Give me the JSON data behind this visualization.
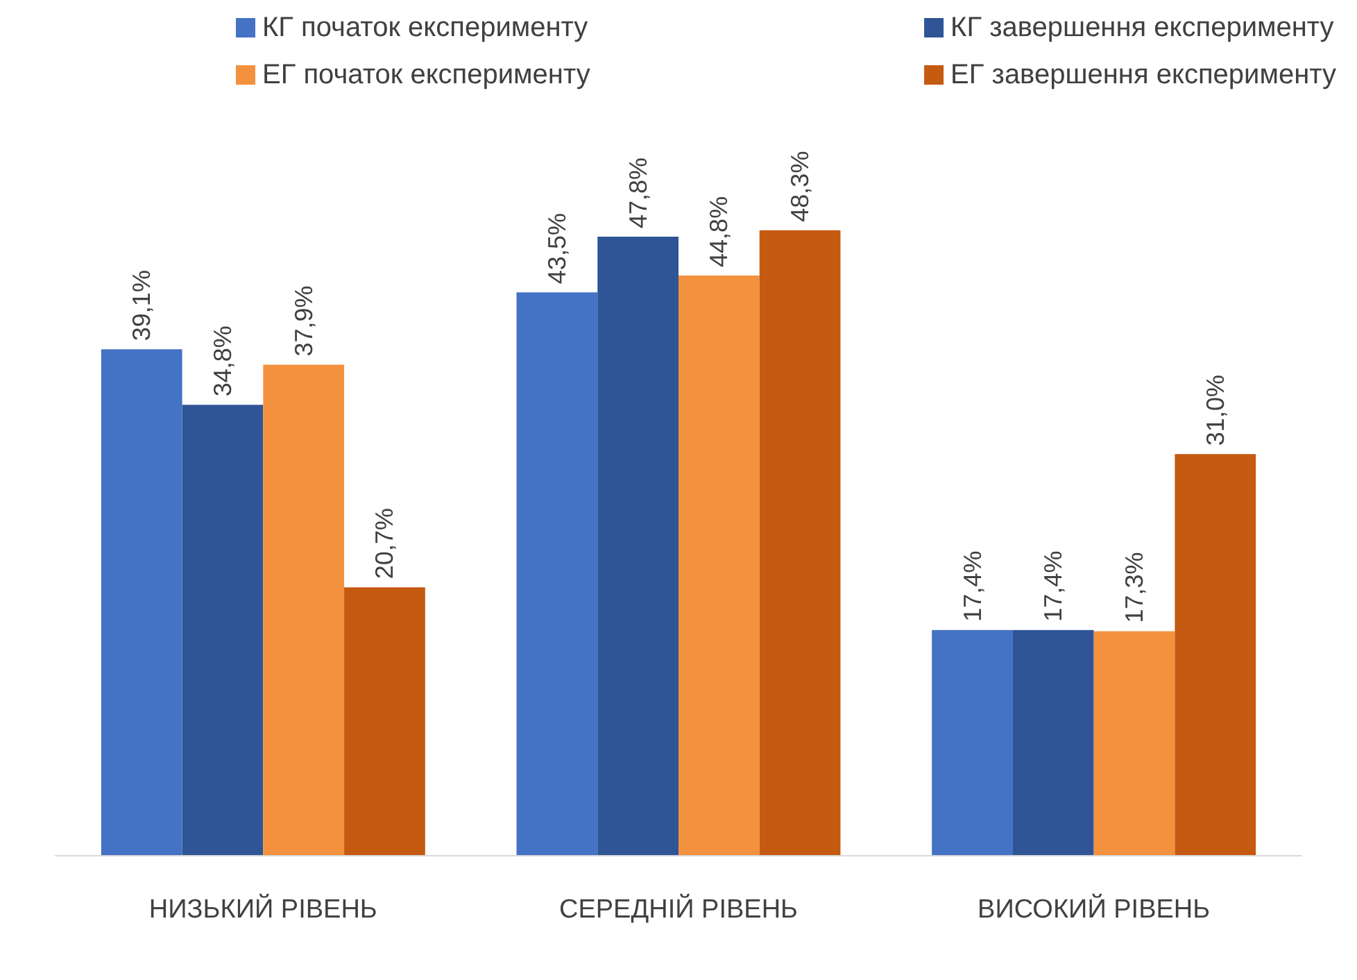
{
  "chart_data": {
    "type": "bar",
    "categories": [
      "НИЗЬКИЙ РІВЕНЬ",
      "СЕРЕДНІЙ РІВЕНЬ",
      "ВИСОКИЙ РІВЕНЬ"
    ],
    "series": [
      {
        "name": "КГ початок експерименту",
        "color": "#4472c4",
        "values": [
          39.1,
          43.5,
          17.4
        ],
        "value_labels": [
          "39,1%",
          "43,5%",
          "17,4%"
        ]
      },
      {
        "name": "КГ завершення експерименту",
        "color": "#2f5597",
        "values": [
          34.8,
          47.8,
          17.4
        ],
        "value_labels": [
          "34,8%",
          "47,8%",
          "17,4%"
        ]
      },
      {
        "name": "ЕГ початок експерименту",
        "color": "#f4913e",
        "values": [
          37.9,
          44.8,
          17.3
        ],
        "value_labels": [
          "37,9%",
          "44,8%",
          "17,3%"
        ]
      },
      {
        "name": "ЕГ завершення експерименту",
        "color": "#c55a11",
        "values": [
          20.7,
          48.3,
          31.0
        ],
        "value_labels": [
          "20,7%",
          "48,3%",
          "31,0%"
        ]
      }
    ],
    "legend": "top right"
  }
}
